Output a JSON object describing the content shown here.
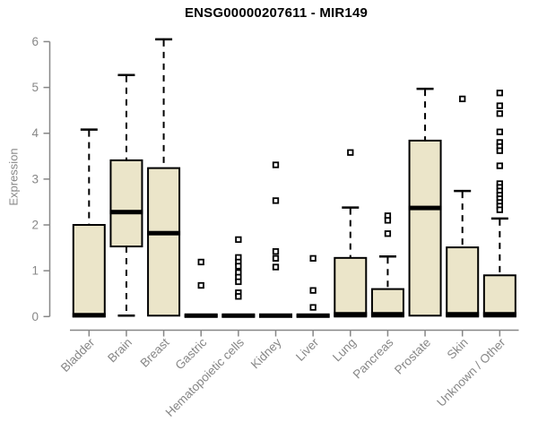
{
  "title": "ENSG00000207611 - MIR149",
  "y_axis_title": "Expression",
  "colors": {
    "box_fill": "#EBE5C9",
    "box_border": "#000000",
    "median": "#000000",
    "whisker": "#000000",
    "outlier": "#000000",
    "axis": "#878787",
    "tick_label": "#878787",
    "title_text": "#000000",
    "background": "#ffffff"
  },
  "chart_data": {
    "type": "boxplot",
    "title": "ENSG00000207611 - MIR149",
    "xlabel": "",
    "ylabel": "Expression",
    "ylim": [
      0,
      6
    ],
    "y_ticks": [
      "0",
      "1",
      "2",
      "3",
      "4",
      "5",
      "6"
    ],
    "grid": false,
    "legend": false,
    "outlier_marker": "open-square",
    "categories": [
      "Bladder",
      "Brain",
      "Breast",
      "Gastric",
      "Hematopoietic cells",
      "Kidney",
      "Liver",
      "Lung",
      "Pancreas",
      "Prostate",
      "Skin",
      "Unknown / Other"
    ],
    "boxes": [
      {
        "category": "Bladder",
        "whisker_low": 0,
        "q1": 0,
        "median": 0.03,
        "q3": 2.0,
        "whisker_high": 4.08,
        "outliers": []
      },
      {
        "category": "Brain",
        "whisker_low": 0.02,
        "q1": 1.53,
        "median": 2.28,
        "q3": 3.41,
        "whisker_high": 5.27,
        "outliers": []
      },
      {
        "category": "Breast",
        "whisker_low": 0,
        "q1": 0.02,
        "median": 1.82,
        "q3": 3.24,
        "whisker_high": 6.05,
        "outliers": []
      },
      {
        "category": "Gastric",
        "whisker_low": 0,
        "q1": 0,
        "median": 0.02,
        "q3": 0.03,
        "whisker_high": 0.03,
        "outliers": [
          1.19,
          0.68
        ]
      },
      {
        "category": "Hematopoietic cells",
        "whisker_low": 0,
        "q1": 0,
        "median": 0.02,
        "q3": 0.03,
        "whisker_high": 0.03,
        "outliers": [
          1.68,
          1.29,
          1.19,
          1.1,
          0.96,
          0.86,
          0.76,
          0.52,
          0.44
        ]
      },
      {
        "category": "Kidney",
        "whisker_low": 0,
        "q1": 0,
        "median": 0.02,
        "q3": 0.03,
        "whisker_high": 0.03,
        "outliers": [
          3.31,
          2.53,
          1.42,
          1.27,
          1.08
        ]
      },
      {
        "category": "Liver",
        "whisker_low": 0,
        "q1": 0,
        "median": 0.02,
        "q3": 0.03,
        "whisker_high": 0.03,
        "outliers": [
          1.27,
          0.57,
          0.2
        ]
      },
      {
        "category": "Lung",
        "whisker_low": 0,
        "q1": 0,
        "median": 0.05,
        "q3": 1.28,
        "whisker_high": 2.38,
        "outliers": [
          3.58
        ]
      },
      {
        "category": "Pancreas",
        "whisker_low": 0,
        "q1": 0,
        "median": 0.05,
        "q3": 0.6,
        "whisker_high": 1.31,
        "outliers": [
          2.2,
          2.1,
          1.81
        ]
      },
      {
        "category": "Prostate",
        "whisker_low": 0,
        "q1": 0.02,
        "median": 2.37,
        "q3": 3.84,
        "whisker_high": 4.97,
        "outliers": []
      },
      {
        "category": "Skin",
        "whisker_low": 0,
        "q1": 0,
        "median": 0.05,
        "q3": 1.51,
        "whisker_high": 2.74,
        "outliers": [
          4.75
        ]
      },
      {
        "category": "Unknown / Other",
        "whisker_low": 0,
        "q1": 0,
        "median": 0.05,
        "q3": 0.9,
        "whisker_high": 2.14,
        "outliers": [
          4.88,
          4.6,
          4.43,
          4.03,
          3.8,
          3.71,
          3.62,
          3.29,
          2.9,
          2.82,
          2.74,
          2.65,
          2.57,
          2.49,
          2.41,
          2.33
        ]
      }
    ]
  }
}
